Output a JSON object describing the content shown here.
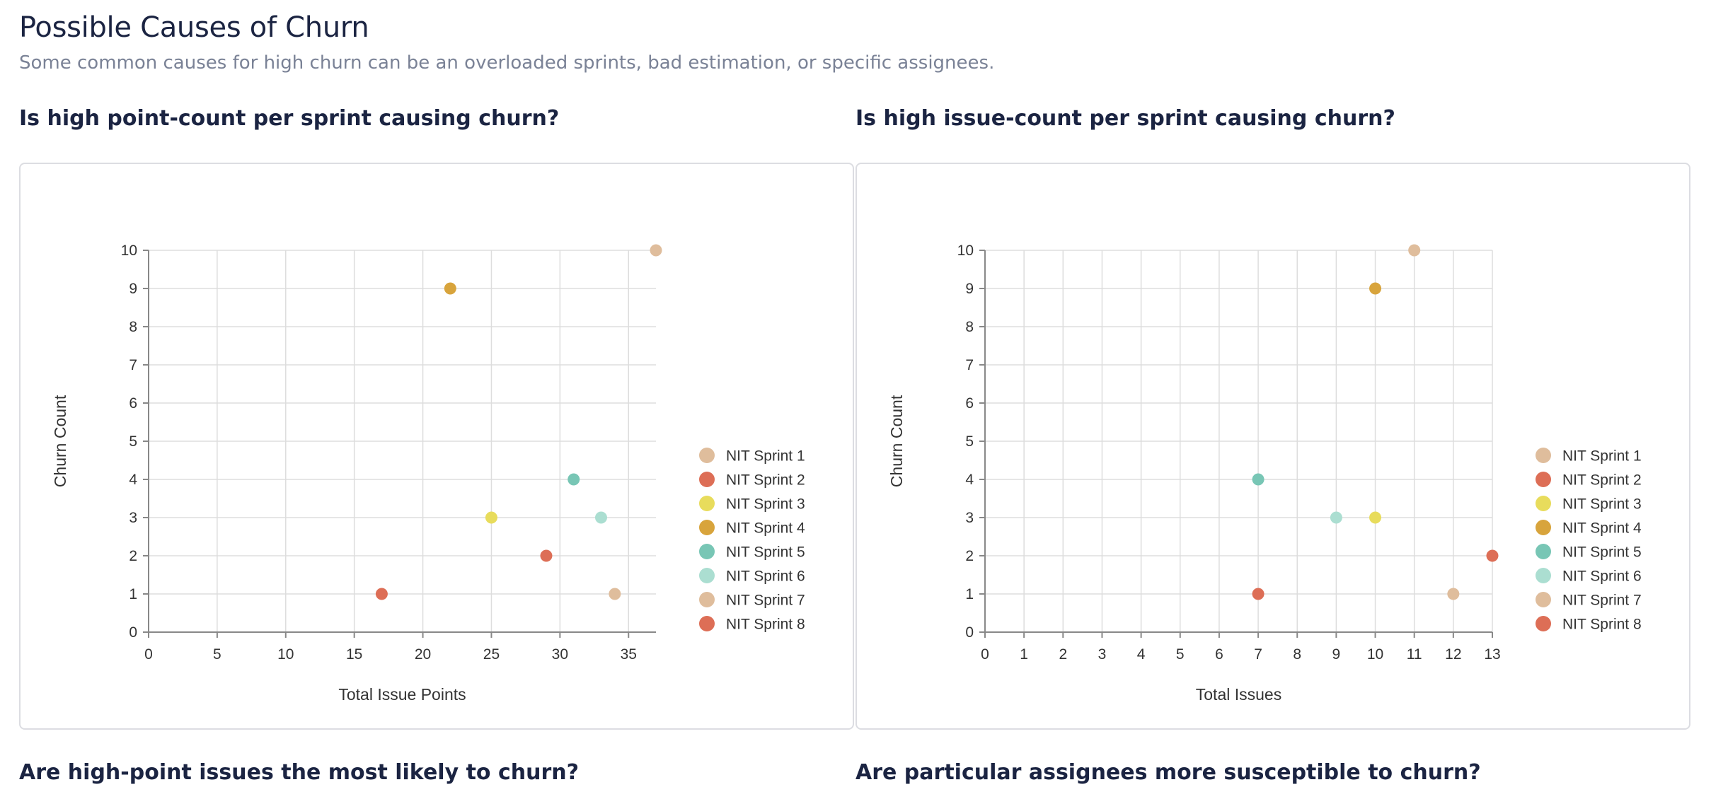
{
  "page": {
    "title": "Possible Causes of Churn",
    "subtitle": "Some common causes for high churn can be an overloaded sprints, bad estimation, or specific assignees."
  },
  "sections": {
    "points_heading": "Is high point-count per sprint causing churn?",
    "issues_heading": "Is high issue-count per sprint causing churn?",
    "high_point_heading": "Are high-point issues the most likely to churn?",
    "assignee_heading": "Are particular assignees more susceptible to churn?"
  },
  "chart_data": [
    {
      "type": "scatter",
      "xlabel": "Total Issue Points",
      "ylabel": "Churn Count",
      "xlim": [
        0,
        37
      ],
      "ylim": [
        0,
        10
      ],
      "xticks": [
        0,
        5,
        10,
        15,
        20,
        25,
        30,
        35
      ],
      "yticks": [
        0,
        1,
        2,
        3,
        4,
        5,
        6,
        7,
        8,
        9,
        10
      ],
      "grid": true,
      "legend_position": "right",
      "series": [
        {
          "name": "NIT Sprint 1",
          "color": "#dfbd9c",
          "x": [
            37
          ],
          "y": [
            10
          ]
        },
        {
          "name": "NIT Sprint 2",
          "color": "#dd6e56",
          "x": [
            29
          ],
          "y": [
            2
          ]
        },
        {
          "name": "NIT Sprint 3",
          "color": "#e8dc5c",
          "x": [
            25
          ],
          "y": [
            3
          ]
        },
        {
          "name": "NIT Sprint 4",
          "color": "#d8a43c",
          "x": [
            22
          ],
          "y": [
            9
          ]
        },
        {
          "name": "NIT Sprint 5",
          "color": "#78c6b5",
          "x": [
            31
          ],
          "y": [
            4
          ]
        },
        {
          "name": "NIT Sprint 6",
          "color": "#abded1",
          "x": [
            33
          ],
          "y": [
            3
          ]
        },
        {
          "name": "NIT Sprint 7",
          "color": "#dfbd9c",
          "x": [
            34
          ],
          "y": [
            1
          ]
        },
        {
          "name": "NIT Sprint 8",
          "color": "#dd6e56",
          "x": [
            17
          ],
          "y": [
            1
          ]
        }
      ]
    },
    {
      "type": "scatter",
      "xlabel": "Total Issues",
      "ylabel": "Churn Count",
      "xlim": [
        0,
        13
      ],
      "ylim": [
        0,
        10
      ],
      "xticks": [
        0,
        1,
        2,
        3,
        4,
        5,
        6,
        7,
        8,
        9,
        10,
        11,
        12,
        13
      ],
      "yticks": [
        0,
        1,
        2,
        3,
        4,
        5,
        6,
        7,
        8,
        9,
        10
      ],
      "grid": true,
      "legend_position": "right",
      "series": [
        {
          "name": "NIT Sprint 1",
          "color": "#dfbd9c",
          "x": [
            11
          ],
          "y": [
            10
          ]
        },
        {
          "name": "NIT Sprint 2",
          "color": "#dd6e56",
          "x": [
            13
          ],
          "y": [
            2
          ]
        },
        {
          "name": "NIT Sprint 3",
          "color": "#e8dc5c",
          "x": [
            10
          ],
          "y": [
            3
          ]
        },
        {
          "name": "NIT Sprint 4",
          "color": "#d8a43c",
          "x": [
            10
          ],
          "y": [
            9
          ]
        },
        {
          "name": "NIT Sprint 5",
          "color": "#78c6b5",
          "x": [
            7
          ],
          "y": [
            4
          ]
        },
        {
          "name": "NIT Sprint 6",
          "color": "#abded1",
          "x": [
            9
          ],
          "y": [
            3
          ]
        },
        {
          "name": "NIT Sprint 7",
          "color": "#dfbd9c",
          "x": [
            12
          ],
          "y": [
            1
          ]
        },
        {
          "name": "NIT Sprint 8",
          "color": "#dd6e56",
          "x": [
            7
          ],
          "y": [
            1
          ]
        }
      ]
    }
  ]
}
